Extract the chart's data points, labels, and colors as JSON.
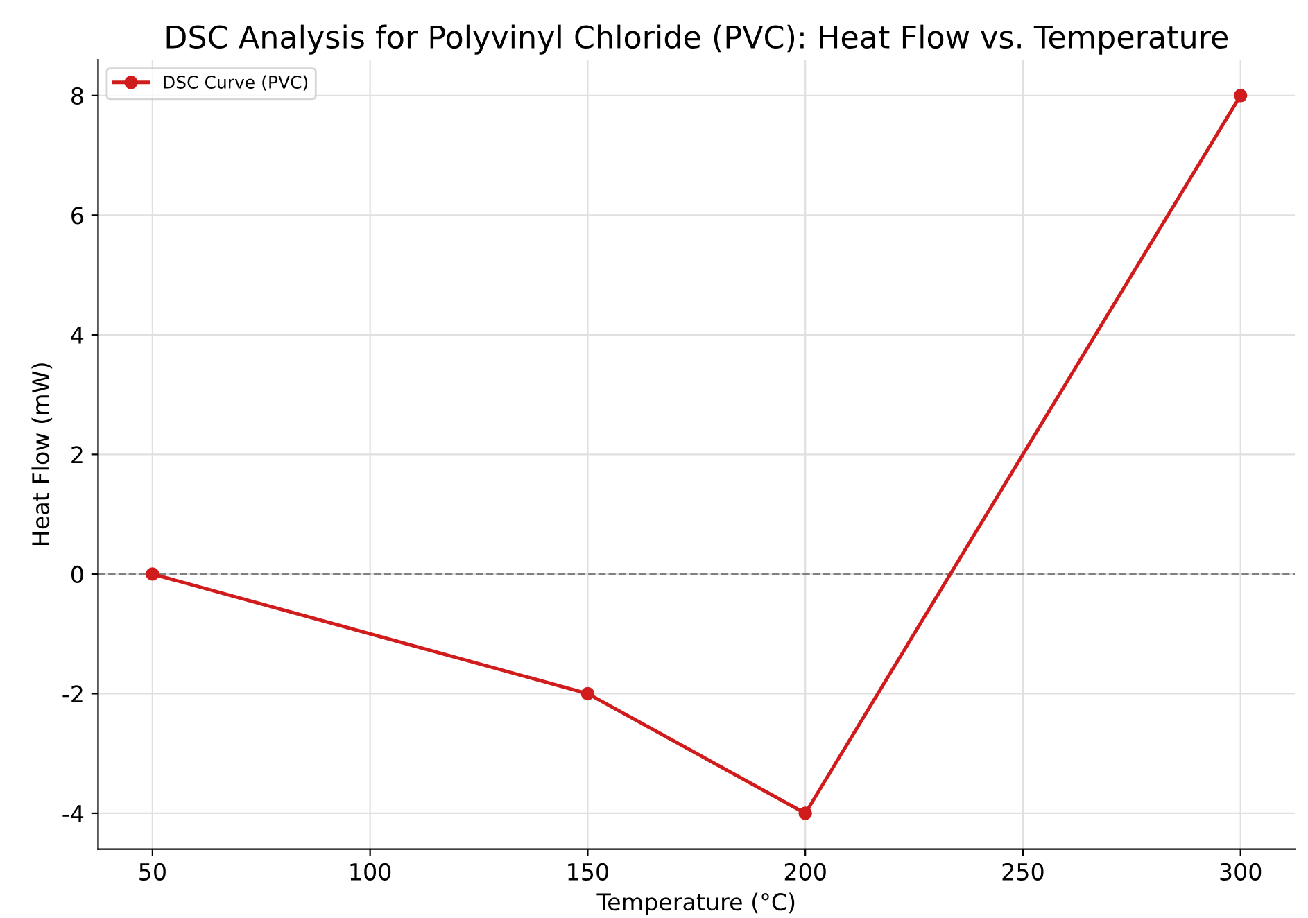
{
  "chart_data": {
    "type": "line",
    "title": "DSC Analysis for Polyvinyl Chloride (PVC): Heat Flow vs. Temperature",
    "xlabel": "Temperature (°C)",
    "ylabel": "Heat Flow (mW)",
    "x": [
      50,
      150,
      200,
      300
    ],
    "series": [
      {
        "name": "DSC Curve (PVC)",
        "color": "#d01c1c",
        "values": [
          0,
          -2,
          -4,
          8
        ]
      }
    ],
    "xlim": [
      37.5,
      312.5
    ],
    "xticks": [
      50,
      100,
      150,
      200,
      250,
      300
    ],
    "ylim": [
      -4.6,
      8.6
    ],
    "yticks": [
      -4,
      -2,
      0,
      2,
      4,
      6,
      8
    ],
    "ref_lines": [
      {
        "axis": "y",
        "value": 0,
        "color": "#808080",
        "line_style": "dashed"
      }
    ],
    "grid": true,
    "legend": "top left",
    "marker": "circle",
    "line_style": "solid"
  }
}
